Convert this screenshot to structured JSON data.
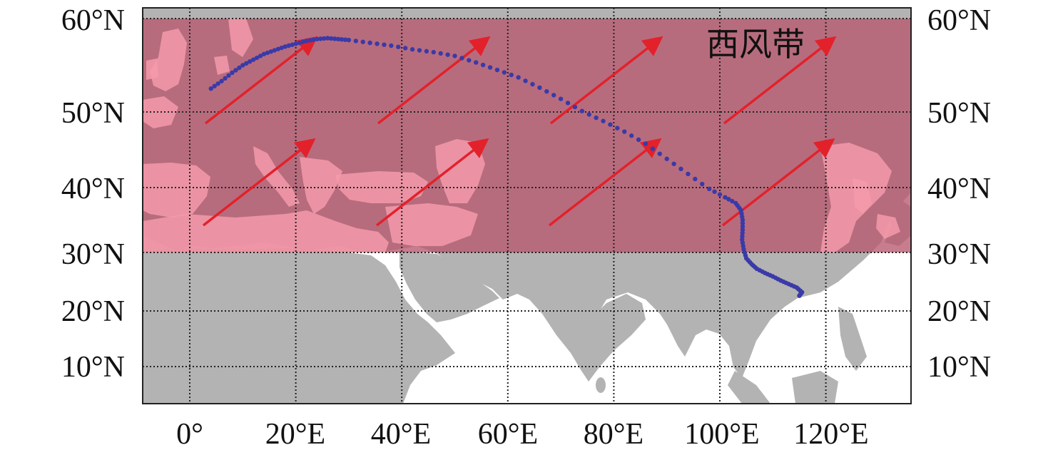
{
  "map": {
    "band_label": "西风带",
    "lat_labels": [
      "60°N",
      "50°N",
      "40°N",
      "30°N",
      "20°N",
      "10°N"
    ],
    "lon_labels": [
      "0°",
      "20°E",
      "40°E",
      "60°E",
      "80°E",
      "100°E",
      "120°E"
    ],
    "colors": {
      "band": "#b8586e",
      "land": "#b3b3b3",
      "land_in_band": "#f49aaa",
      "ocean": "#ffffff",
      "arrow": "#e3212b",
      "track": "#3a3aa8",
      "grid": "#222222"
    },
    "band_extent_lat": [
      30,
      60
    ],
    "arrow_direction": "southwest-to-northeast",
    "track_points": [
      [
        4,
        52.5
      ],
      [
        6,
        53.3
      ],
      [
        8,
        54.2
      ],
      [
        10,
        55.0
      ],
      [
        12,
        55.6
      ],
      [
        14,
        56.2
      ],
      [
        16,
        56.6
      ],
      [
        18,
        57.0
      ],
      [
        20,
        57.3
      ],
      [
        22,
        57.6
      ],
      [
        24,
        57.8
      ],
      [
        26,
        57.9
      ],
      [
        28,
        57.8
      ],
      [
        30,
        57.7
      ],
      [
        34,
        57.4
      ],
      [
        38,
        57.1
      ],
      [
        42,
        56.7
      ],
      [
        46,
        56.4
      ],
      [
        50,
        56.0
      ],
      [
        54,
        55.3
      ],
      [
        58,
        54.5
      ],
      [
        62,
        53.7
      ],
      [
        66,
        52.6
      ],
      [
        70,
        51.4
      ],
      [
        74,
        50.1
      ],
      [
        78,
        48.8
      ],
      [
        82,
        47.4
      ],
      [
        86,
        45.8
      ],
      [
        90,
        43.8
      ],
      [
        94,
        41.8
      ],
      [
        98,
        39.8
      ],
      [
        101,
        38.5
      ],
      [
        103,
        37.6
      ],
      [
        104,
        36.5
      ],
      [
        104.3,
        35.0
      ],
      [
        104.3,
        33.5
      ],
      [
        104.2,
        32.0
      ],
      [
        104.5,
        30.5
      ],
      [
        105,
        29.0
      ],
      [
        106,
        28.0
      ],
      [
        107,
        27.2
      ],
      [
        108.5,
        26.5
      ],
      [
        110,
        25.9
      ],
      [
        111.5,
        25.2
      ],
      [
        113,
        24.6
      ],
      [
        114.5,
        24.0
      ],
      [
        115.5,
        23.2
      ],
      [
        115,
        22.6
      ]
    ]
  }
}
